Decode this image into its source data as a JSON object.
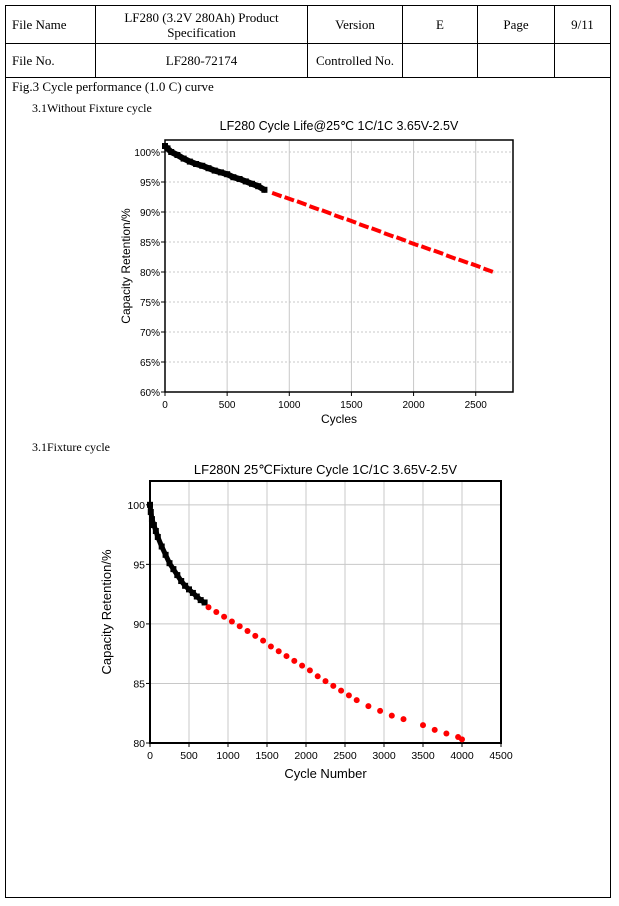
{
  "header": {
    "file_name_label": "File Name",
    "file_name_value": "LF280 (3.2V 280Ah)    Product Specification",
    "version_label": "Version",
    "version_value": "E",
    "page_label": "Page",
    "page_value": "9/11",
    "file_no_label": "File No.",
    "file_no_value": "LF280-72174",
    "controlled_label": "Controlled No.",
    "controlled_value": ""
  },
  "figure_caption": "Fig.3 Cycle performance (1.0 C) curve",
  "section1_label": "3.1Without Fixture cycle",
  "section2_label": "3.1Fixture    cycle",
  "colors": {
    "measured": "#000000",
    "projected": "#ff0000",
    "grid": "#c8c8c8"
  },
  "chart_data": [
    {
      "type": "scatter",
      "title": "LF280  Cycle Life@25℃ 1C/1C 3.65V-2.5V",
      "xlabel": "Cycles",
      "ylabel": "Capacity Retention/%",
      "xlim": [
        0,
        2800
      ],
      "ylim": [
        60,
        102
      ],
      "xticks": [
        0,
        500,
        1000,
        1500,
        2000,
        2500
      ],
      "yticks": [
        60,
        65,
        70,
        75,
        80,
        85,
        90,
        95,
        100
      ],
      "ytick_labels": [
        "60%",
        "65%",
        "70%",
        "75%",
        "80%",
        "85%",
        "90%",
        "95%",
        "100%"
      ],
      "grid": true,
      "series": [
        {
          "style": "measured",
          "marker": "square",
          "x": [
            0,
            20,
            50,
            100,
            150,
            200,
            250,
            300,
            350,
            400,
            450,
            500,
            550,
            600,
            650,
            700,
            750,
            800
          ],
          "y": [
            101,
            100.6,
            100,
            99.5,
            98.9,
            98.4,
            98,
            97.7,
            97.3,
            96.9,
            96.6,
            96.3,
            95.8,
            95.5,
            95.1,
            94.7,
            94.3,
            93.7
          ]
        },
        {
          "style": "projected",
          "marker": "dash",
          "x": [
            900,
            1000,
            1100,
            1200,
            1300,
            1400,
            1500,
            1600,
            1700,
            1800,
            1900,
            2000,
            2100,
            2200,
            2300,
            2400,
            2500,
            2600
          ],
          "y": [
            92.9,
            92.2,
            91.5,
            90.7,
            90,
            89.2,
            88.5,
            87.7,
            87,
            86.2,
            85.5,
            84.7,
            84,
            83.3,
            82.5,
            81.8,
            81.1,
            80.3
          ]
        }
      ]
    },
    {
      "type": "scatter",
      "title": "LF280N 25℃Fixture Cycle 1C/1C 3.65V-2.5V",
      "xlabel": "Cycle Number",
      "ylabel": "Capacity Retention/%",
      "xlim": [
        0,
        4500
      ],
      "ylim": [
        80,
        102
      ],
      "xticks": [
        0,
        500,
        1000,
        1500,
        2000,
        2500,
        3000,
        3500,
        4000,
        4500
      ],
      "yticks": [
        80,
        85,
        90,
        95,
        100
      ],
      "ytick_labels": [
        "80",
        "85",
        "90",
        "95",
        "100"
      ],
      "grid": true,
      "series": [
        {
          "style": "measured",
          "marker": "square",
          "x": [
            0,
            10,
            25,
            50,
            75,
            100,
            150,
            200,
            250,
            300,
            350,
            400,
            450,
            500,
            550,
            600,
            650,
            700
          ],
          "y": [
            100,
            99.4,
            98.8,
            98.3,
            97.8,
            97.3,
            96.5,
            95.8,
            95.1,
            94.6,
            94.1,
            93.6,
            93.2,
            92.9,
            92.6,
            92.3,
            92,
            91.8
          ]
        },
        {
          "style": "projected",
          "marker": "circle",
          "x": [
            750,
            850,
            950,
            1050,
            1150,
            1250,
            1350,
            1450,
            1550,
            1650,
            1750,
            1850,
            1950,
            2050,
            2150,
            2250,
            2350,
            2450,
            2550,
            2650,
            2800,
            2950,
            3100,
            3250,
            3500,
            3650,
            3800,
            3950,
            4000
          ],
          "y": [
            91.4,
            91,
            90.6,
            90.2,
            89.8,
            89.4,
            89,
            88.6,
            88.1,
            87.7,
            87.3,
            86.9,
            86.5,
            86.1,
            85.6,
            85.2,
            84.8,
            84.4,
            84,
            83.6,
            83.1,
            82.7,
            82.3,
            82,
            81.5,
            81.1,
            80.8,
            80.5,
            80.3
          ]
        }
      ]
    }
  ]
}
